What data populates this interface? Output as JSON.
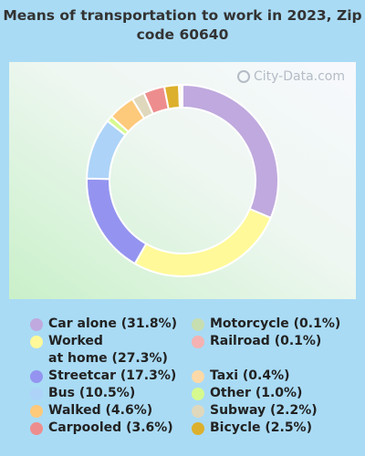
{
  "chart_data": {
    "type": "pie",
    "title": "Means of transportation to work in 2023, Zip code 60640",
    "watermark": "City-Data.com",
    "legend_placement": "bottom",
    "slices": [
      {
        "label": "Car alone (31.8%)",
        "value": 31.8,
        "color": "#bfa9de"
      },
      {
        "label": "Worked\nat home (27.3%)",
        "value": 27.3,
        "color": "#fff999"
      },
      {
        "label": "Streetcar (17.3%)",
        "value": 17.3,
        "color": "#9494f0"
      },
      {
        "label": "Bus (10.5%)",
        "value": 10.5,
        "color": "#add3f8"
      },
      {
        "label": "Other (1.0%)",
        "value": 1.0,
        "color": "#d6fa8e"
      },
      {
        "label": "Walked (4.6%)",
        "value": 4.6,
        "color": "#fdc97b"
      },
      {
        "label": "Subway (2.2%)",
        "value": 2.2,
        "color": "#e0d8bd"
      },
      {
        "label": "Carpooled (3.6%)",
        "value": 3.6,
        "color": "#ee8d8d"
      },
      {
        "label": "Bicycle (2.5%)",
        "value": 2.5,
        "color": "#dcb02d"
      },
      {
        "label": "Taxi (0.4%)",
        "value": 0.4,
        "color": "#fdd9a8"
      },
      {
        "label": "Railroad (0.1%)",
        "value": 0.1,
        "color": "#f4b2b2"
      },
      {
        "label": "Motorcycle (0.1%)",
        "value": 0.1,
        "color": "#c7deb0"
      }
    ],
    "legend_columns": [
      [
        "Car alone (31.8%)",
        "Worked\nat home (27.3%)",
        "Streetcar (17.3%)",
        "Bus (10.5%)",
        "Walked (4.6%)",
        "Carpooled (3.6%)"
      ],
      [
        "Motorcycle (0.1%)",
        "Railroad (0.1%)",
        "Taxi (0.4%)",
        "Other (1.0%)",
        "Subway (2.2%)",
        "Bicycle (2.5%)"
      ]
    ]
  }
}
